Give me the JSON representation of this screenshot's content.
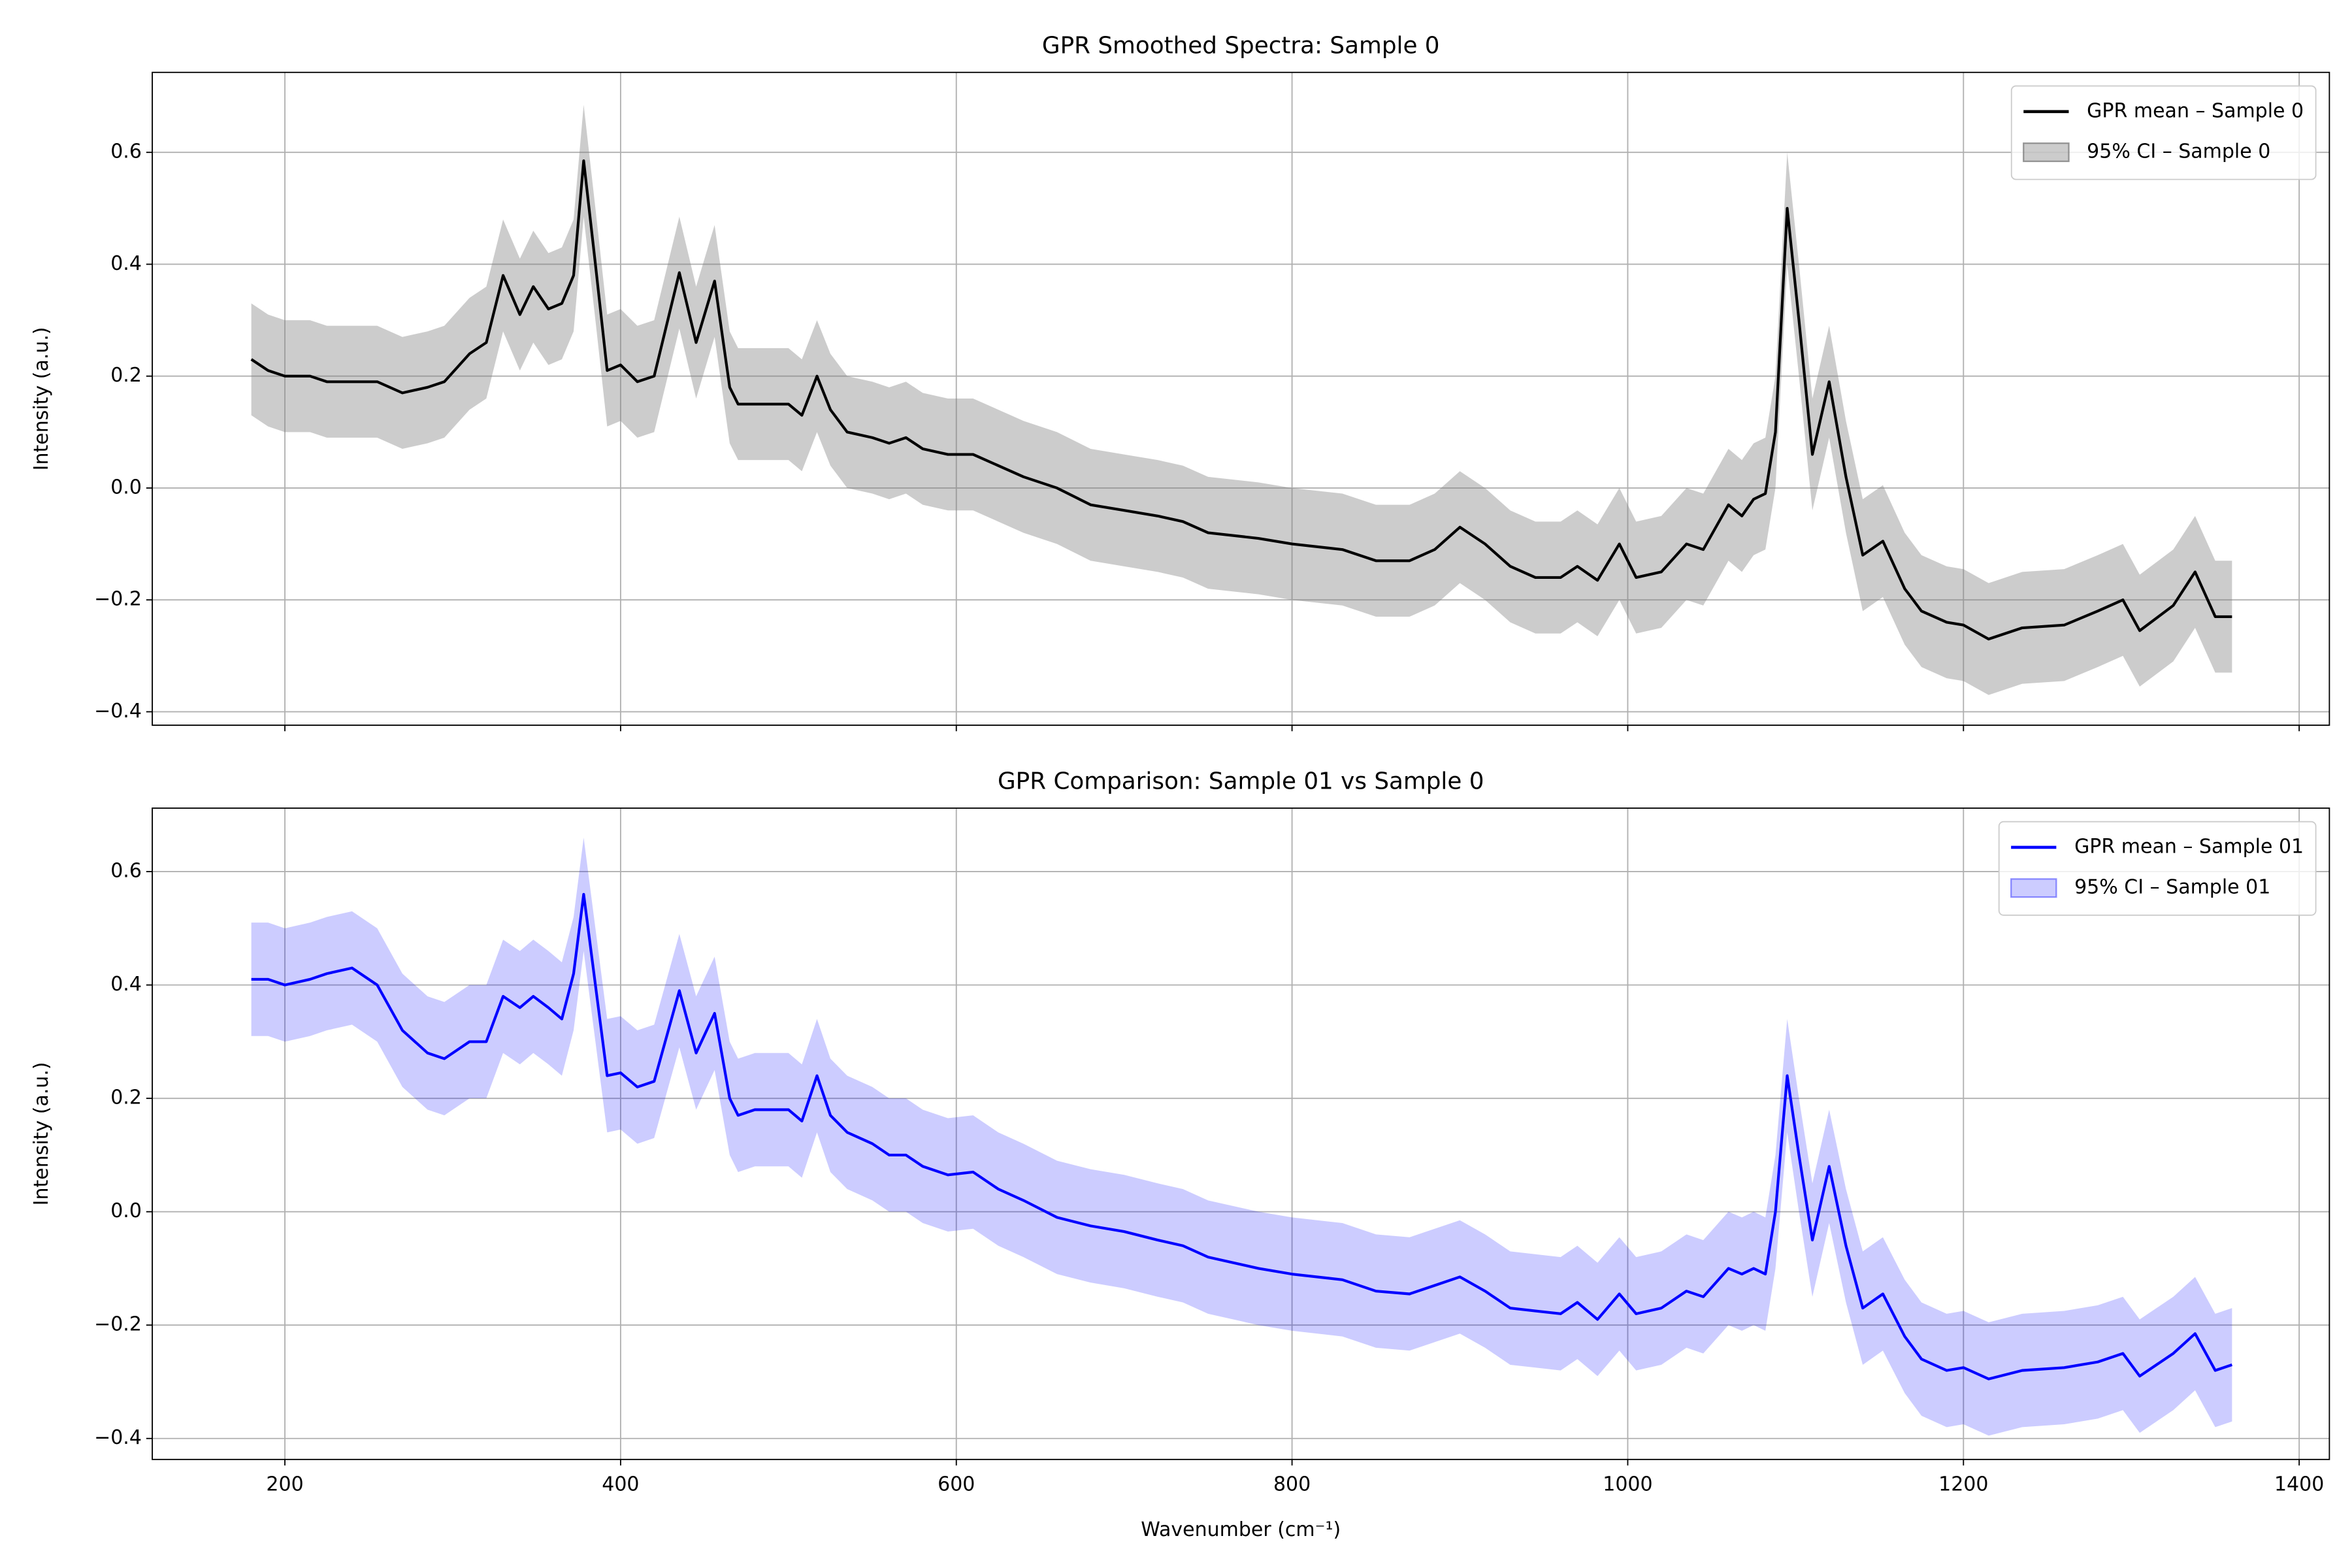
{
  "chart_data": [
    {
      "type": "line",
      "title": "GPR Smoothed Spectra: Sample 0",
      "ylabel": "Intensity (a.u.)",
      "x": [
        180,
        190,
        200,
        215,
        225,
        240,
        255,
        270,
        285,
        295,
        310,
        320,
        330,
        340,
        348,
        357,
        365,
        372,
        378,
        385,
        392,
        400,
        410,
        420,
        435,
        445,
        456,
        465,
        470,
        480,
        490,
        500,
        508,
        517,
        525,
        535,
        550,
        560,
        570,
        580,
        595,
        610,
        625,
        640,
        660,
        680,
        700,
        720,
        735,
        750,
        780,
        800,
        830,
        850,
        870,
        885,
        900,
        915,
        930,
        945,
        960,
        970,
        982,
        995,
        1005,
        1020,
        1035,
        1045,
        1060,
        1068,
        1075,
        1082,
        1088,
        1095,
        1102,
        1110,
        1120,
        1130,
        1140,
        1152,
        1165,
        1175,
        1190,
        1200,
        1215,
        1235,
        1260,
        1280,
        1295,
        1305,
        1325,
        1338,
        1350,
        1360
      ],
      "series": [
        {
          "name": "GPR mean – Sample 0",
          "color": "#000000",
          "values": [
            0.23,
            0.21,
            0.2,
            0.2,
            0.19,
            0.19,
            0.19,
            0.17,
            0.18,
            0.19,
            0.24,
            0.26,
            0.38,
            0.31,
            0.36,
            0.32,
            0.33,
            0.38,
            0.585,
            0.4,
            0.21,
            0.22,
            0.19,
            0.2,
            0.385,
            0.26,
            0.37,
            0.18,
            0.15,
            0.15,
            0.15,
            0.15,
            0.13,
            0.2,
            0.14,
            0.1,
            0.09,
            0.08,
            0.09,
            0.07,
            0.06,
            0.06,
            0.04,
            0.02,
            0.0,
            -0.03,
            -0.04,
            -0.05,
            -0.06,
            -0.08,
            -0.09,
            -0.1,
            -0.11,
            -0.13,
            -0.13,
            -0.11,
            -0.07,
            -0.1,
            -0.14,
            -0.16,
            -0.16,
            -0.14,
            -0.165,
            -0.1,
            -0.16,
            -0.15,
            -0.1,
            -0.11,
            -0.03,
            -0.05,
            -0.02,
            -0.01,
            0.1,
            0.5,
            0.3,
            0.06,
            0.19,
            0.02,
            -0.12,
            -0.095,
            -0.18,
            -0.22,
            -0.24,
            -0.245,
            -0.27,
            -0.25,
            -0.245,
            -0.22,
            -0.2,
            -0.255,
            -0.21,
            -0.15,
            -0.23,
            -0.23
          ]
        }
      ],
      "band": {
        "name": "95% CI – Sample 0",
        "color": "#808080",
        "alpha": 0.4,
        "upper": [
          0.33,
          0.31,
          0.3,
          0.3,
          0.29,
          0.29,
          0.29,
          0.27,
          0.28,
          0.29,
          0.34,
          0.36,
          0.48,
          0.41,
          0.46,
          0.42,
          0.43,
          0.48,
          0.685,
          0.5,
          0.31,
          0.32,
          0.29,
          0.3,
          0.485,
          0.36,
          0.47,
          0.28,
          0.25,
          0.25,
          0.25,
          0.25,
          0.23,
          0.3,
          0.24,
          0.2,
          0.19,
          0.18,
          0.19,
          0.17,
          0.16,
          0.16,
          0.14,
          0.12,
          0.1,
          0.07,
          0.06,
          0.05,
          0.04,
          0.02,
          0.01,
          0.0,
          -0.01,
          -0.03,
          -0.03,
          -0.01,
          0.03,
          0.0,
          -0.04,
          -0.06,
          -0.06,
          -0.04,
          -0.065,
          0.0,
          -0.06,
          -0.05,
          0.0,
          -0.01,
          0.07,
          0.05,
          0.08,
          0.09,
          0.2,
          0.6,
          0.4,
          0.16,
          0.29,
          0.12,
          -0.02,
          0.005,
          -0.08,
          -0.12,
          -0.14,
          -0.145,
          -0.17,
          -0.15,
          -0.145,
          -0.12,
          -0.1,
          -0.155,
          -0.11,
          -0.05,
          -0.13,
          -0.13
        ],
        "lower": [
          0.13,
          0.11,
          0.1,
          0.1,
          0.09,
          0.09,
          0.09,
          0.07,
          0.08,
          0.09,
          0.14,
          0.16,
          0.28,
          0.21,
          0.26,
          0.22,
          0.23,
          0.28,
          0.485,
          0.3,
          0.11,
          0.12,
          0.09,
          0.1,
          0.285,
          0.16,
          0.27,
          0.08,
          0.05,
          0.05,
          0.05,
          0.05,
          0.03,
          0.1,
          0.04,
          0.0,
          -0.01,
          -0.02,
          -0.01,
          -0.03,
          -0.04,
          -0.04,
          -0.06,
          -0.08,
          -0.1,
          -0.13,
          -0.14,
          -0.15,
          -0.16,
          -0.18,
          -0.19,
          -0.2,
          -0.21,
          -0.23,
          -0.23,
          -0.21,
          -0.17,
          -0.2,
          -0.24,
          -0.26,
          -0.26,
          -0.24,
          -0.265,
          -0.2,
          -0.26,
          -0.25,
          -0.2,
          -0.21,
          -0.13,
          -0.15,
          -0.12,
          -0.11,
          0.0,
          0.4,
          0.2,
          -0.04,
          0.09,
          -0.08,
          -0.22,
          -0.195,
          -0.28,
          -0.32,
          -0.34,
          -0.345,
          -0.37,
          -0.35,
          -0.345,
          -0.32,
          -0.3,
          -0.355,
          -0.31,
          -0.25,
          -0.33,
          -0.33
        ]
      },
      "xlim": [
        121,
        1418
      ],
      "ylim": [
        -0.424,
        0.743
      ],
      "xticks": [
        200,
        400,
        600,
        800,
        1000,
        1200,
        1400
      ],
      "yticks": [
        {
          "value": -0.4,
          "label": "−0.4"
        },
        {
          "value": -0.2,
          "label": "−0.2"
        },
        {
          "value": 0,
          "label": "0.0"
        },
        0.2,
        0.4,
        0.6
      ],
      "grid": true,
      "legend": "upper right"
    },
    {
      "type": "line",
      "title": "GPR Comparison: Sample 01 vs Sample 0",
      "ylabel": "Intensity (a.u.)",
      "xlabel": "Wavenumber (cm⁻¹)",
      "x": [
        180,
        190,
        200,
        215,
        225,
        240,
        255,
        270,
        285,
        295,
        310,
        320,
        330,
        340,
        348,
        357,
        365,
        372,
        378,
        385,
        392,
        400,
        410,
        420,
        435,
        445,
        456,
        465,
        470,
        480,
        490,
        500,
        508,
        517,
        525,
        535,
        550,
        560,
        570,
        580,
        595,
        610,
        625,
        640,
        660,
        680,
        700,
        720,
        735,
        750,
        780,
        800,
        830,
        850,
        870,
        885,
        900,
        915,
        930,
        945,
        960,
        970,
        982,
        995,
        1005,
        1020,
        1035,
        1045,
        1060,
        1068,
        1075,
        1082,
        1088,
        1095,
        1102,
        1110,
        1120,
        1130,
        1140,
        1152,
        1165,
        1175,
        1190,
        1200,
        1215,
        1235,
        1260,
        1280,
        1295,
        1305,
        1325,
        1338,
        1350,
        1360
      ],
      "series": [
        {
          "name": "GPR mean – Sample 01",
          "color": "#0000ff",
          "values": [
            0.41,
            0.41,
            0.4,
            0.41,
            0.42,
            0.43,
            0.4,
            0.32,
            0.28,
            0.27,
            0.3,
            0.3,
            0.38,
            0.36,
            0.38,
            0.36,
            0.34,
            0.42,
            0.56,
            0.4,
            0.24,
            0.245,
            0.22,
            0.23,
            0.39,
            0.28,
            0.35,
            0.2,
            0.17,
            0.18,
            0.18,
            0.18,
            0.16,
            0.24,
            0.17,
            0.14,
            0.12,
            0.1,
            0.1,
            0.08,
            0.065,
            0.07,
            0.04,
            0.02,
            -0.01,
            -0.025,
            -0.035,
            -0.05,
            -0.06,
            -0.08,
            -0.1,
            -0.11,
            -0.12,
            -0.14,
            -0.145,
            -0.13,
            -0.115,
            -0.14,
            -0.17,
            -0.175,
            -0.18,
            -0.16,
            -0.19,
            -0.145,
            -0.18,
            -0.17,
            -0.14,
            -0.15,
            -0.1,
            -0.11,
            -0.1,
            -0.11,
            0.0,
            0.24,
            0.1,
            -0.05,
            0.08,
            -0.06,
            -0.17,
            -0.145,
            -0.22,
            -0.26,
            -0.28,
            -0.275,
            -0.295,
            -0.28,
            -0.275,
            -0.265,
            -0.25,
            -0.29,
            -0.25,
            -0.215,
            -0.28,
            -0.27
          ]
        }
      ],
      "band": {
        "name": "95% CI – Sample 01",
        "color": "#0000ff",
        "alpha": 0.2,
        "upper": [
          0.51,
          0.51,
          0.5,
          0.51,
          0.52,
          0.53,
          0.5,
          0.42,
          0.38,
          0.37,
          0.4,
          0.4,
          0.48,
          0.46,
          0.48,
          0.46,
          0.44,
          0.52,
          0.66,
          0.5,
          0.34,
          0.345,
          0.32,
          0.33,
          0.49,
          0.38,
          0.45,
          0.3,
          0.27,
          0.28,
          0.28,
          0.28,
          0.26,
          0.34,
          0.27,
          0.24,
          0.22,
          0.2,
          0.2,
          0.18,
          0.165,
          0.17,
          0.14,
          0.12,
          0.09,
          0.075,
          0.065,
          0.05,
          0.04,
          0.02,
          0.0,
          -0.01,
          -0.02,
          -0.04,
          -0.045,
          -0.03,
          -0.015,
          -0.04,
          -0.07,
          -0.075,
          -0.08,
          -0.06,
          -0.09,
          -0.045,
          -0.08,
          -0.07,
          -0.04,
          -0.05,
          0.0,
          -0.01,
          0.0,
          -0.01,
          0.1,
          0.34,
          0.2,
          0.05,
          0.18,
          0.04,
          -0.07,
          -0.045,
          -0.12,
          -0.16,
          -0.18,
          -0.175,
          -0.195,
          -0.18,
          -0.175,
          -0.165,
          -0.15,
          -0.19,
          -0.15,
          -0.115,
          -0.18,
          -0.17
        ],
        "lower": [
          0.31,
          0.31,
          0.3,
          0.31,
          0.32,
          0.33,
          0.3,
          0.22,
          0.18,
          0.17,
          0.2,
          0.2,
          0.28,
          0.26,
          0.28,
          0.26,
          0.24,
          0.32,
          0.46,
          0.3,
          0.14,
          0.145,
          0.12,
          0.13,
          0.29,
          0.18,
          0.25,
          0.1,
          0.07,
          0.08,
          0.08,
          0.08,
          0.06,
          0.14,
          0.07,
          0.04,
          0.02,
          0.0,
          0.0,
          -0.02,
          -0.035,
          -0.03,
          -0.06,
          -0.08,
          -0.11,
          -0.125,
          -0.135,
          -0.15,
          -0.16,
          -0.18,
          -0.2,
          -0.21,
          -0.22,
          -0.24,
          -0.245,
          -0.23,
          -0.215,
          -0.24,
          -0.27,
          -0.275,
          -0.28,
          -0.26,
          -0.29,
          -0.245,
          -0.28,
          -0.27,
          -0.24,
          -0.25,
          -0.2,
          -0.21,
          -0.2,
          -0.21,
          -0.1,
          0.14,
          0.0,
          -0.15,
          -0.02,
          -0.16,
          -0.27,
          -0.245,
          -0.32,
          -0.36,
          -0.38,
          -0.375,
          -0.395,
          -0.38,
          -0.375,
          -0.365,
          -0.35,
          -0.39,
          -0.35,
          -0.315,
          -0.38,
          -0.37
        ]
      },
      "xlim": [
        121,
        1418
      ],
      "ylim": [
        -0.437,
        0.712
      ],
      "xticks": [
        200,
        400,
        600,
        800,
        1000,
        1200,
        1400
      ],
      "yticks": [
        {
          "value": -0.4,
          "label": "−0.4"
        },
        {
          "value": -0.2,
          "label": "−0.2"
        },
        {
          "value": 0,
          "label": "0.0"
        },
        0.2,
        0.4,
        0.6
      ],
      "grid": true,
      "legend": "upper right"
    }
  ]
}
